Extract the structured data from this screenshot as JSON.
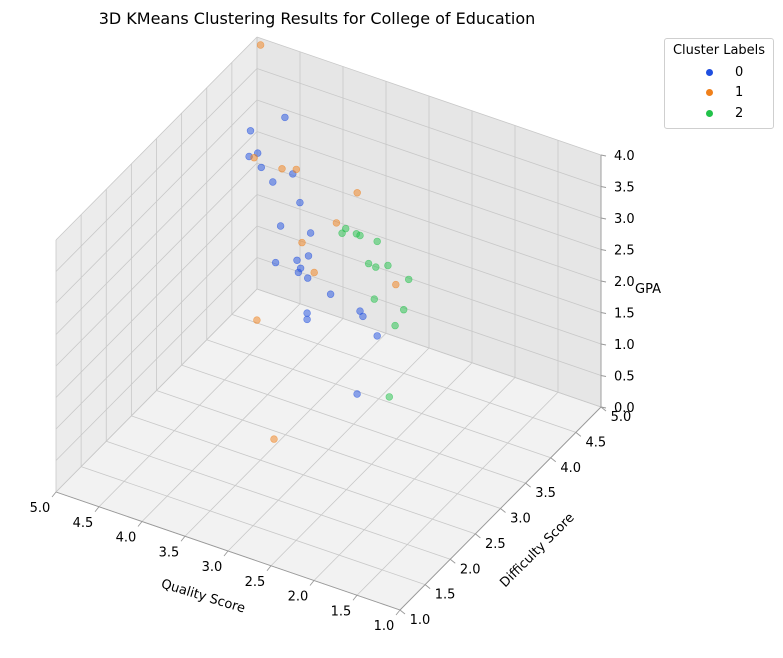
{
  "chart_data": {
    "type": "scatter",
    "title": "3D KMeans Clustering Results for College of Education",
    "xlabel": "Quality Score",
    "ylabel": "Difficulty Score",
    "zlabel": "GPA",
    "xlim": [
      1.0,
      5.0
    ],
    "ylim": [
      1.0,
      5.0
    ],
    "zlim": [
      0.0,
      4.0
    ],
    "x_ticks": [
      "1.0",
      "1.5",
      "2.0",
      "2.5",
      "3.0",
      "3.5",
      "4.0",
      "4.5",
      "5.0"
    ],
    "y_ticks": [
      "1.0",
      "1.5",
      "2.0",
      "2.5",
      "3.0",
      "3.5",
      "4.0",
      "4.5",
      "5.0"
    ],
    "z_ticks": [
      "0.0",
      "0.5",
      "1.0",
      "1.5",
      "2.0",
      "2.5",
      "3.0",
      "3.5",
      "4.0"
    ],
    "grid": true,
    "legend": {
      "title": "Cluster Labels",
      "placement": "outside top-right"
    },
    "series": [
      {
        "name": "0",
        "color": "#1f4fe0",
        "points": [
          [
            3.5,
            3.5,
            2.8
          ],
          [
            3.8,
            3.8,
            2.9
          ],
          [
            4.0,
            4.0,
            3.1
          ],
          [
            4.6,
            4.4,
            2.6
          ],
          [
            4.7,
            4.5,
            2.7
          ],
          [
            4.8,
            4.5,
            2.6
          ],
          [
            4.9,
            4.7,
            2.8
          ],
          [
            4.5,
            4.7,
            3.2
          ],
          [
            3.3,
            3.1,
            2.5
          ],
          [
            3.5,
            3.3,
            2.4
          ],
          [
            3.6,
            3.4,
            2.4
          ],
          [
            2.6,
            3.0,
            2.3
          ],
          [
            2.8,
            2.7,
            2.8
          ],
          [
            3.6,
            3.6,
            1.3
          ],
          [
            3.6,
            3.6,
            1.4
          ],
          [
            3.7,
            3.6,
            2.0
          ],
          [
            4.2,
            4.0,
            1.6
          ],
          [
            4.2,
            4.1,
            2.1
          ],
          [
            3.7,
            3.8,
            2.1
          ],
          [
            4.7,
            4.8,
            2.0
          ],
          [
            2.2,
            2.6,
            2.5
          ],
          [
            2.4,
            2.6,
            2.8
          ],
          [
            2.2,
            2.2,
            1.9
          ]
        ]
      },
      {
        "name": "1",
        "color": "#f0801a",
        "points": [
          [
            2.1,
            2.8,
            3.2
          ],
          [
            3.2,
            3.5,
            3.1
          ],
          [
            2.9,
            3.4,
            3.8
          ],
          [
            3.6,
            3.5,
            2.6
          ],
          [
            3.9,
            3.9,
            3.3
          ],
          [
            4.3,
            4.3,
            2.8
          ],
          [
            4.8,
            4.6,
            2.5
          ],
          [
            4.9,
            4.9,
            4.0
          ],
          [
            4.3,
            3.8,
            0.8
          ],
          [
            3.4,
            2.6,
            0.3
          ],
          [
            3.4,
            3.4,
            2.3
          ]
        ]
      },
      {
        "name": "2",
        "color": "#22c24a",
        "points": [
          [
            1.3,
            1.3,
            3.0
          ],
          [
            1.6,
            2.2,
            4.0
          ],
          [
            1.9,
            2.3,
            4.0
          ],
          [
            1.7,
            2.1,
            3.3
          ],
          [
            2.0,
            2.2,
            3.5
          ],
          [
            2.2,
            2.6,
            4.0
          ],
          [
            2.4,
            2.6,
            4.0
          ],
          [
            2.1,
            2.4,
            3.8
          ],
          [
            2.3,
            2.6,
            3.6
          ],
          [
            2.5,
            2.7,
            3.9
          ],
          [
            2.8,
            3.0,
            3.6
          ],
          [
            2.9,
            3.1,
            3.4
          ],
          [
            1.6,
            2.1,
            3.6
          ]
        ]
      }
    ]
  }
}
